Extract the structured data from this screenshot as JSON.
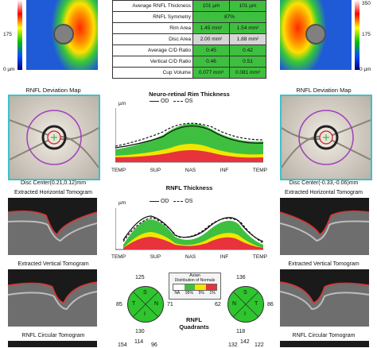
{
  "left_map": {
    "scale_top": "350",
    "scale_mid": "175",
    "scale_bottom": "0 µm"
  },
  "right_map": {
    "scale_top": "350",
    "scale_mid": "175",
    "scale_bottom": "0 µm"
  },
  "table": {
    "rows": [
      {
        "label": "Average RNFL Thickness",
        "od": "101 µm",
        "os": "101 µm",
        "od_color": "green",
        "os_color": "green"
      },
      {
        "label": "RNFL Symmetry",
        "merged": "87%",
        "merged_color": "green"
      },
      {
        "label": "Rim Area",
        "od": "1.45 mm²",
        "os": "1.54 mm²",
        "od_color": "green",
        "os_color": "green"
      },
      {
        "label": "Disc Area",
        "od": "2.00 mm²",
        "os": "1.88 mm²",
        "od_color": "gray",
        "os_color": "gray"
      },
      {
        "label": "Average C/D Ratio",
        "od": "0.45",
        "os": "0.42",
        "od_color": "green",
        "os_color": "green"
      },
      {
        "label": "Vertical C/D Ratio",
        "od": "0.46",
        "os": "0.51",
        "od_color": "green",
        "os_color": "green"
      },
      {
        "label": "Cup Volume",
        "od": "0.077 mm³",
        "os": "0.081 mm³",
        "od_color": "green",
        "os_color": "green"
      }
    ]
  },
  "left_panel": {
    "deviation_title": "RNFL Deviation Map",
    "disc_center": "Disc Center(0.21,0.12)mm",
    "horizontal_title": "Extracted Horizontal Tomogram",
    "vertical_title": "Extracted Vertical Tomogram",
    "circular_title": "RNFL Circular Tomogram"
  },
  "right_panel": {
    "deviation_title": "RNFL Deviation Map",
    "disc_center": "Disc Center(-0.33,-0.06)mm",
    "horizontal_title": "Extracted Horizontal Tomogram",
    "vertical_title": "Extracted Vertical Tomogram",
    "circular_title": "RNFL Circular Tomogram"
  },
  "rim_chart": {
    "title": "Neuro-retinal Rim Thickness",
    "unit": "µm",
    "legend_od": "OD",
    "legend_os": "OS",
    "x_ticks": [
      "TEMP",
      "SUP",
      "NAS",
      "INF",
      "TEMP"
    ]
  },
  "rnfl_chart": {
    "title": "RNFL Thickness",
    "unit": "µm",
    "legend_od": "OD",
    "legend_os": "OS",
    "x_ticks": [
      "TEMP",
      "SUP",
      "NAS",
      "INF",
      "TEMP"
    ]
  },
  "quadrants": {
    "title_line1": "RNFL",
    "title_line2": "Quadrants",
    "letters": [
      "S",
      "T",
      "N",
      "I"
    ],
    "od": {
      "top": "125",
      "left": "85",
      "right": "71",
      "bottom": "130"
    },
    "os": {
      "top": "136",
      "left": "62",
      "right": "86",
      "bottom": "118"
    },
    "below_left": [
      "154",
      "114",
      "96"
    ],
    "below_left_2": "114",
    "below_right": [
      "132",
      "142",
      "122"
    ]
  },
  "legend_box": {
    "title": "Asian",
    "subtitle": "Distribution of Normals",
    "labels": [
      "NA",
      "95%",
      "5%",
      "1%"
    ]
  },
  "colors": {
    "normal_green": "#3fbf3f",
    "borderline_yellow": "#f2e600",
    "abnormal_red": "#e8323c",
    "fundus_border": "#3fc1c9"
  }
}
